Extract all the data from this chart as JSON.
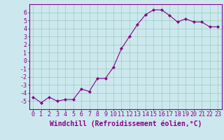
{
  "x": [
    0,
    1,
    2,
    3,
    4,
    5,
    6,
    7,
    8,
    9,
    10,
    11,
    12,
    13,
    14,
    15,
    16,
    17,
    18,
    19,
    20,
    21,
    22,
    23
  ],
  "y": [
    -4.5,
    -5.2,
    -4.5,
    -5.0,
    -4.8,
    -4.8,
    -3.5,
    -3.8,
    -2.2,
    -2.2,
    -0.8,
    1.5,
    3.0,
    4.5,
    5.7,
    6.3,
    6.3,
    5.6,
    4.8,
    5.2,
    4.8,
    4.8,
    4.2,
    4.2
  ],
  "xlabel": "Windchill (Refroidissement éolien,°C)",
  "xlim": [
    -0.5,
    23.5
  ],
  "ylim": [
    -6,
    7
  ],
  "yticks": [
    -5,
    -4,
    -3,
    -2,
    -1,
    0,
    1,
    2,
    3,
    4,
    5,
    6
  ],
  "xticks": [
    0,
    1,
    2,
    3,
    4,
    5,
    6,
    7,
    8,
    9,
    10,
    11,
    12,
    13,
    14,
    15,
    16,
    17,
    18,
    19,
    20,
    21,
    22,
    23
  ],
  "line_color": "#880088",
  "marker": "D",
  "marker_size": 2,
  "bg_color": "#cce8ee",
  "grid_color": "#99ccbb",
  "axes_color": "#880088",
  "tick_color": "#880088",
  "label_color": "#880088",
  "font_size": 6
}
